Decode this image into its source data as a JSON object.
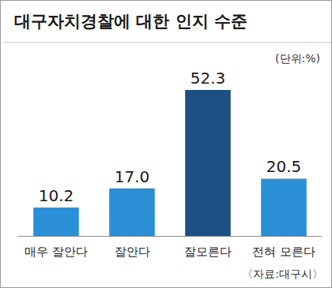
{
  "chart_data": {
    "type": "bar",
    "title": "대구자치경찰에 대한 인지 수준",
    "subtitle": "(단위:%)",
    "source": "〈자료:대구시〉",
    "categories": [
      "매우 잘안다",
      "잘안다",
      "잘모른다",
      "전혀 모른다"
    ],
    "values": [
      10.2,
      17.0,
      52.3,
      20.5
    ],
    "value_labels": [
      "10.2",
      "17.0",
      "52.3",
      "20.5"
    ],
    "colors": [
      "#2b8fd6",
      "#2b8fd6",
      "#1d4f82",
      "#2b8fd6"
    ],
    "data_labels": true,
    "tick_labels": "x",
    "grid": false
  }
}
